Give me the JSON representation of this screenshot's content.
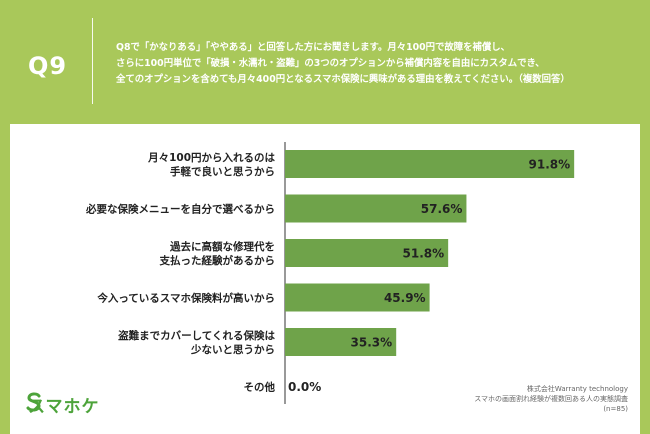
{
  "header": {
    "question_id": "Q9",
    "question_lines": [
      "Q8で「かなりある」「ややある」と回答した方にお聞きします。月々100円で故障を補償し、",
      "さらに100円単位で「破損・水濡れ・盗難」の3つのオプションから補償内容を自由にカスタムでき、",
      "全てのオプションを含めても月々400円となるスマホ保険に興味がある理由を教えてください。（複数回答）"
    ]
  },
  "chart_data": {
    "type": "bar",
    "orientation": "horizontal",
    "categories": [
      [
        "月々100円から入れるのは",
        "手軽で良いと思うから"
      ],
      [
        "必要な保険メニューを自分で選べるから"
      ],
      [
        "過去に高額な修理代を",
        "支払った経験があるから"
      ],
      [
        "今入っているスマホ保険料が高いから"
      ],
      [
        "盗難までカバーしてくれる保険は",
        "少ないと思うから"
      ],
      [
        "その他"
      ]
    ],
    "values": [
      91.8,
      57.6,
      51.8,
      45.9,
      35.3,
      0.0
    ],
    "value_labels": [
      "91.8%",
      "57.6%",
      "51.8%",
      "45.9%",
      "35.3%",
      "0.0%"
    ],
    "xlim": [
      0,
      100
    ],
    "bar_color": "#6fa34a",
    "grid": false
  },
  "footer": {
    "logo_text": "スマホケ",
    "source_lines": [
      "株式会社Warranty technology",
      "スマホの画面割れ経験が複数回ある人の実態調査",
      "(n=85)"
    ]
  },
  "colors": {
    "background": "#a9c85a",
    "logo": "#4da33a"
  }
}
